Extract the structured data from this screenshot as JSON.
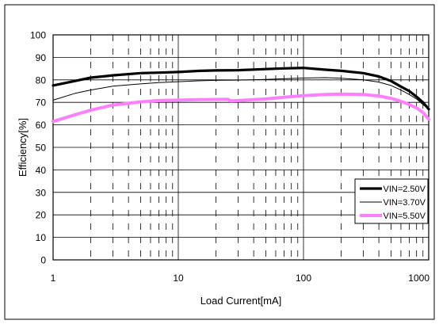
{
  "chart_data": {
    "type": "line",
    "title": "",
    "xlabel": "Load Current[mA]",
    "ylabel": "Efficiency[%]",
    "xscale": "log",
    "xlim": [
      1,
      1000
    ],
    "ylim": [
      0,
      100
    ],
    "x_ticks": [
      1,
      10,
      100,
      1000
    ],
    "x_tick_labels": [
      "1",
      "10",
      "100",
      "1000"
    ],
    "y_ticks": [
      0,
      10,
      20,
      30,
      40,
      50,
      60,
      70,
      80,
      90,
      100
    ],
    "y_tick_labels": [
      "0",
      "10",
      "20",
      "30",
      "40",
      "50",
      "60",
      "70",
      "80",
      "90",
      "100"
    ],
    "grid": true,
    "legend_position": "bottom-right",
    "series": [
      {
        "name": "VIN=2.50V",
        "color": "#000000",
        "style": "thick",
        "x": [
          1,
          1.5,
          2,
          3,
          5,
          7,
          10,
          15,
          20,
          30,
          50,
          70,
          100,
          150,
          200,
          300,
          400,
          500,
          600,
          700,
          800,
          900,
          1000
        ],
        "y": [
          77.5,
          79.5,
          81,
          82,
          83,
          83.2,
          83.5,
          84,
          84.2,
          84.3,
          84.8,
          85.1,
          85.3,
          84.5,
          84,
          83,
          81.5,
          79.5,
          77,
          75,
          72.5,
          70,
          67
        ]
      },
      {
        "name": "VIN=3.70V",
        "color": "#000000",
        "style": "thin",
        "x": [
          1,
          1.5,
          2,
          3,
          5,
          7,
          10,
          15,
          20,
          30,
          50,
          70,
          100,
          150,
          200,
          300,
          400,
          500,
          600,
          700,
          800,
          900,
          1000
        ],
        "y": [
          71,
          74,
          75.5,
          77.2,
          78.2,
          78.8,
          79.2,
          79.6,
          79.8,
          79.9,
          80.2,
          80.5,
          80.8,
          81,
          80.7,
          80,
          79,
          77.5,
          75.5,
          73.5,
          71.5,
          69,
          67
        ]
      },
      {
        "name": "VIN=5.50V",
        "color": "#ff80ff",
        "style": "thick",
        "x": [
          1,
          1.5,
          2,
          3,
          5,
          7,
          10,
          15,
          20,
          25,
          26,
          30,
          50,
          70,
          100,
          150,
          200,
          300,
          400,
          500,
          600,
          700,
          800,
          900,
          1000
        ],
        "y": [
          61.5,
          64.5,
          66.5,
          68.8,
          70.2,
          70.8,
          71,
          71.2,
          71.3,
          71.4,
          70.7,
          70.8,
          71.5,
          72.3,
          73,
          73.5,
          73.7,
          73.5,
          72.8,
          71.8,
          70.5,
          69,
          67.5,
          65.5,
          62.5
        ]
      }
    ]
  }
}
